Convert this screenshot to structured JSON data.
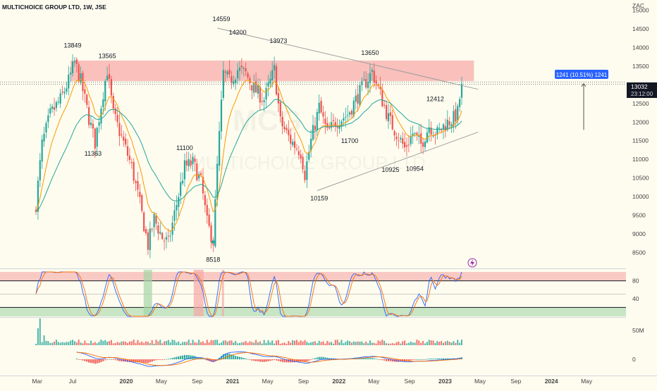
{
  "header": {
    "title": "MULTICHOICE GROUP LTD, 1W, JSE"
  },
  "currency": "ZAC",
  "watermark": {
    "ticker": "MCG",
    "name": "MULTICHOICE GROUP LTD"
  },
  "last_price": {
    "value": "13032",
    "countdown": "23:12:00"
  },
  "measure_label": "1241 (10.51%) 1241",
  "colors": {
    "up": "#26a69a",
    "down": "#ef5350",
    "ema_fast": "#ff9800",
    "ema_slow": "#26a69a",
    "zone": "#f7a7a7",
    "stoch_k": "#2962ff",
    "stoch_d": "#ff6d00"
  },
  "chart_data": {
    "type": "candlestick",
    "symbol": "MCG",
    "exchange": "JSE",
    "interval": "1W",
    "x_axis": {
      "labels": [
        "Mar",
        "Jul",
        "2020",
        "May",
        "Sep",
        "2021",
        "May",
        "Sep",
        "2022",
        "May",
        "Sep",
        "2023",
        "May",
        "Sep",
        "2024",
        "May"
      ],
      "start": "2019-02",
      "end": "2024-06"
    },
    "y_axis": {
      "ticks": [
        8500,
        9000,
        9500,
        10000,
        10500,
        11000,
        11500,
        12000,
        12500,
        13000,
        13500,
        14000,
        14500,
        15000
      ],
      "range": [
        8150,
        15250
      ],
      "unit": "ZAC"
    },
    "price_path": [
      [
        "2019-02-25",
        9800
      ],
      [
        "2019-03-18",
        11400
      ],
      [
        "2019-04-15",
        12200
      ],
      [
        "2019-05-20",
        12600
      ],
      [
        "2019-06-17",
        13100
      ],
      [
        "2019-07-08",
        13600
      ],
      [
        "2019-07-29",
        13100
      ],
      [
        "2019-08-26",
        12100
      ],
      [
        "2019-09-16",
        11450
      ],
      [
        "2019-10-14",
        12800
      ],
      [
        "2019-10-28",
        13400
      ],
      [
        "2019-11-18",
        12200
      ],
      [
        "2019-12-16",
        11600
      ],
      [
        "2020-01-20",
        10800
      ],
      [
        "2020-02-17",
        9800
      ],
      [
        "2020-03-16",
        8700
      ],
      [
        "2020-04-06",
        9400
      ],
      [
        "2020-05-04",
        8900
      ],
      [
        "2020-05-25",
        8750
      ],
      [
        "2020-06-22",
        9800
      ],
      [
        "2020-07-20",
        10800
      ],
      [
        "2020-08-17",
        10900
      ],
      [
        "2020-09-14",
        10400
      ],
      [
        "2020-10-05",
        9300
      ],
      [
        "2020-10-26",
        8800
      ],
      [
        "2020-11-09",
        10800
      ],
      [
        "2020-11-30",
        13300
      ],
      [
        "2020-12-21",
        13100
      ],
      [
        "2021-01-18",
        13400
      ],
      [
        "2021-02-15",
        13300
      ],
      [
        "2021-03-15",
        12900
      ],
      [
        "2021-04-19",
        12600
      ],
      [
        "2021-05-24",
        13400
      ],
      [
        "2021-06-14",
        12000
      ],
      [
        "2021-07-19",
        11500
      ],
      [
        "2021-08-23",
        11200
      ],
      [
        "2021-09-06",
        10600
      ],
      [
        "2021-09-27",
        11500
      ],
      [
        "2021-10-25",
        12400
      ],
      [
        "2021-11-22",
        11700
      ],
      [
        "2021-12-20",
        12000
      ],
      [
        "2022-01-31",
        12200
      ],
      [
        "2022-02-28",
        12600
      ],
      [
        "2022-03-28",
        13000
      ],
      [
        "2022-04-25",
        13350
      ],
      [
        "2022-05-16",
        12900
      ],
      [
        "2022-06-20",
        12100
      ],
      [
        "2022-07-18",
        11700
      ],
      [
        "2022-08-15",
        11300
      ],
      [
        "2022-09-12",
        11700
      ],
      [
        "2022-10-10",
        11400
      ],
      [
        "2022-11-07",
        11900
      ],
      [
        "2022-12-05",
        11700
      ],
      [
        "2023-01-02",
        11950
      ],
      [
        "2023-01-30",
        12100
      ],
      [
        "2023-02-13",
        12250
      ],
      [
        "2023-02-27",
        13032
      ]
    ],
    "price_labels": [
      {
        "text": "13849",
        "date": "2019-07-01",
        "price": 13849,
        "pos": "above"
      },
      {
        "text": "13565",
        "date": "2019-10-28",
        "price": 13565,
        "pos": "above"
      },
      {
        "text": "11363",
        "date": "2019-09-09",
        "price": 11363,
        "pos": "below"
      },
      {
        "text": "14559",
        "date": "2020-11-23",
        "price": 14559,
        "pos": "above"
      },
      {
        "text": "14200",
        "date": "2021-01-18",
        "price": 14200,
        "pos": "above"
      },
      {
        "text": "13973",
        "date": "2021-06-07",
        "price": 13973,
        "pos": "above"
      },
      {
        "text": "11100",
        "date": "2020-07-20",
        "price": 11100,
        "pos": "above"
      },
      {
        "text": "8518",
        "date": "2020-10-26",
        "price": 8518,
        "pos": "below"
      },
      {
        "text": "10159",
        "date": "2021-10-25",
        "price": 10159,
        "pos": "below"
      },
      {
        "text": "11700",
        "date": "2022-02-07",
        "price": 11700,
        "pos": "below"
      },
      {
        "text": "13650",
        "date": "2022-04-18",
        "price": 13650,
        "pos": "above"
      },
      {
        "text": "10925",
        "date": "2022-06-27",
        "price": 10925,
        "pos": "below"
      },
      {
        "text": "10954",
        "date": "2022-09-19",
        "price": 10954,
        "pos": "below"
      },
      {
        "text": "12412",
        "date": "2022-11-28",
        "price": 12412,
        "pos": "above"
      }
    ],
    "resistance_zone": {
      "from": 13100,
      "to": 13650,
      "start": "2019-06-24",
      "end": "2023-04-10"
    },
    "dotted_level": 13032,
    "trendlines": [
      {
        "name": "upper",
        "start": [
          "2020-11-09",
          14520
        ],
        "end": [
          "2023-04-24",
          12880
        ]
      },
      {
        "name": "lower",
        "start": [
          "2021-10-18",
          10160
        ],
        "end": [
          "2023-04-24",
          11730
        ]
      }
    ],
    "measure_range": {
      "from": 11791,
      "to": 13032
    },
    "stochastic": {
      "levels": [
        80,
        20
      ],
      "ticks": [
        80,
        40
      ]
    },
    "volume": {
      "tick": "50M"
    },
    "macd": {
      "tick": 0
    }
  }
}
